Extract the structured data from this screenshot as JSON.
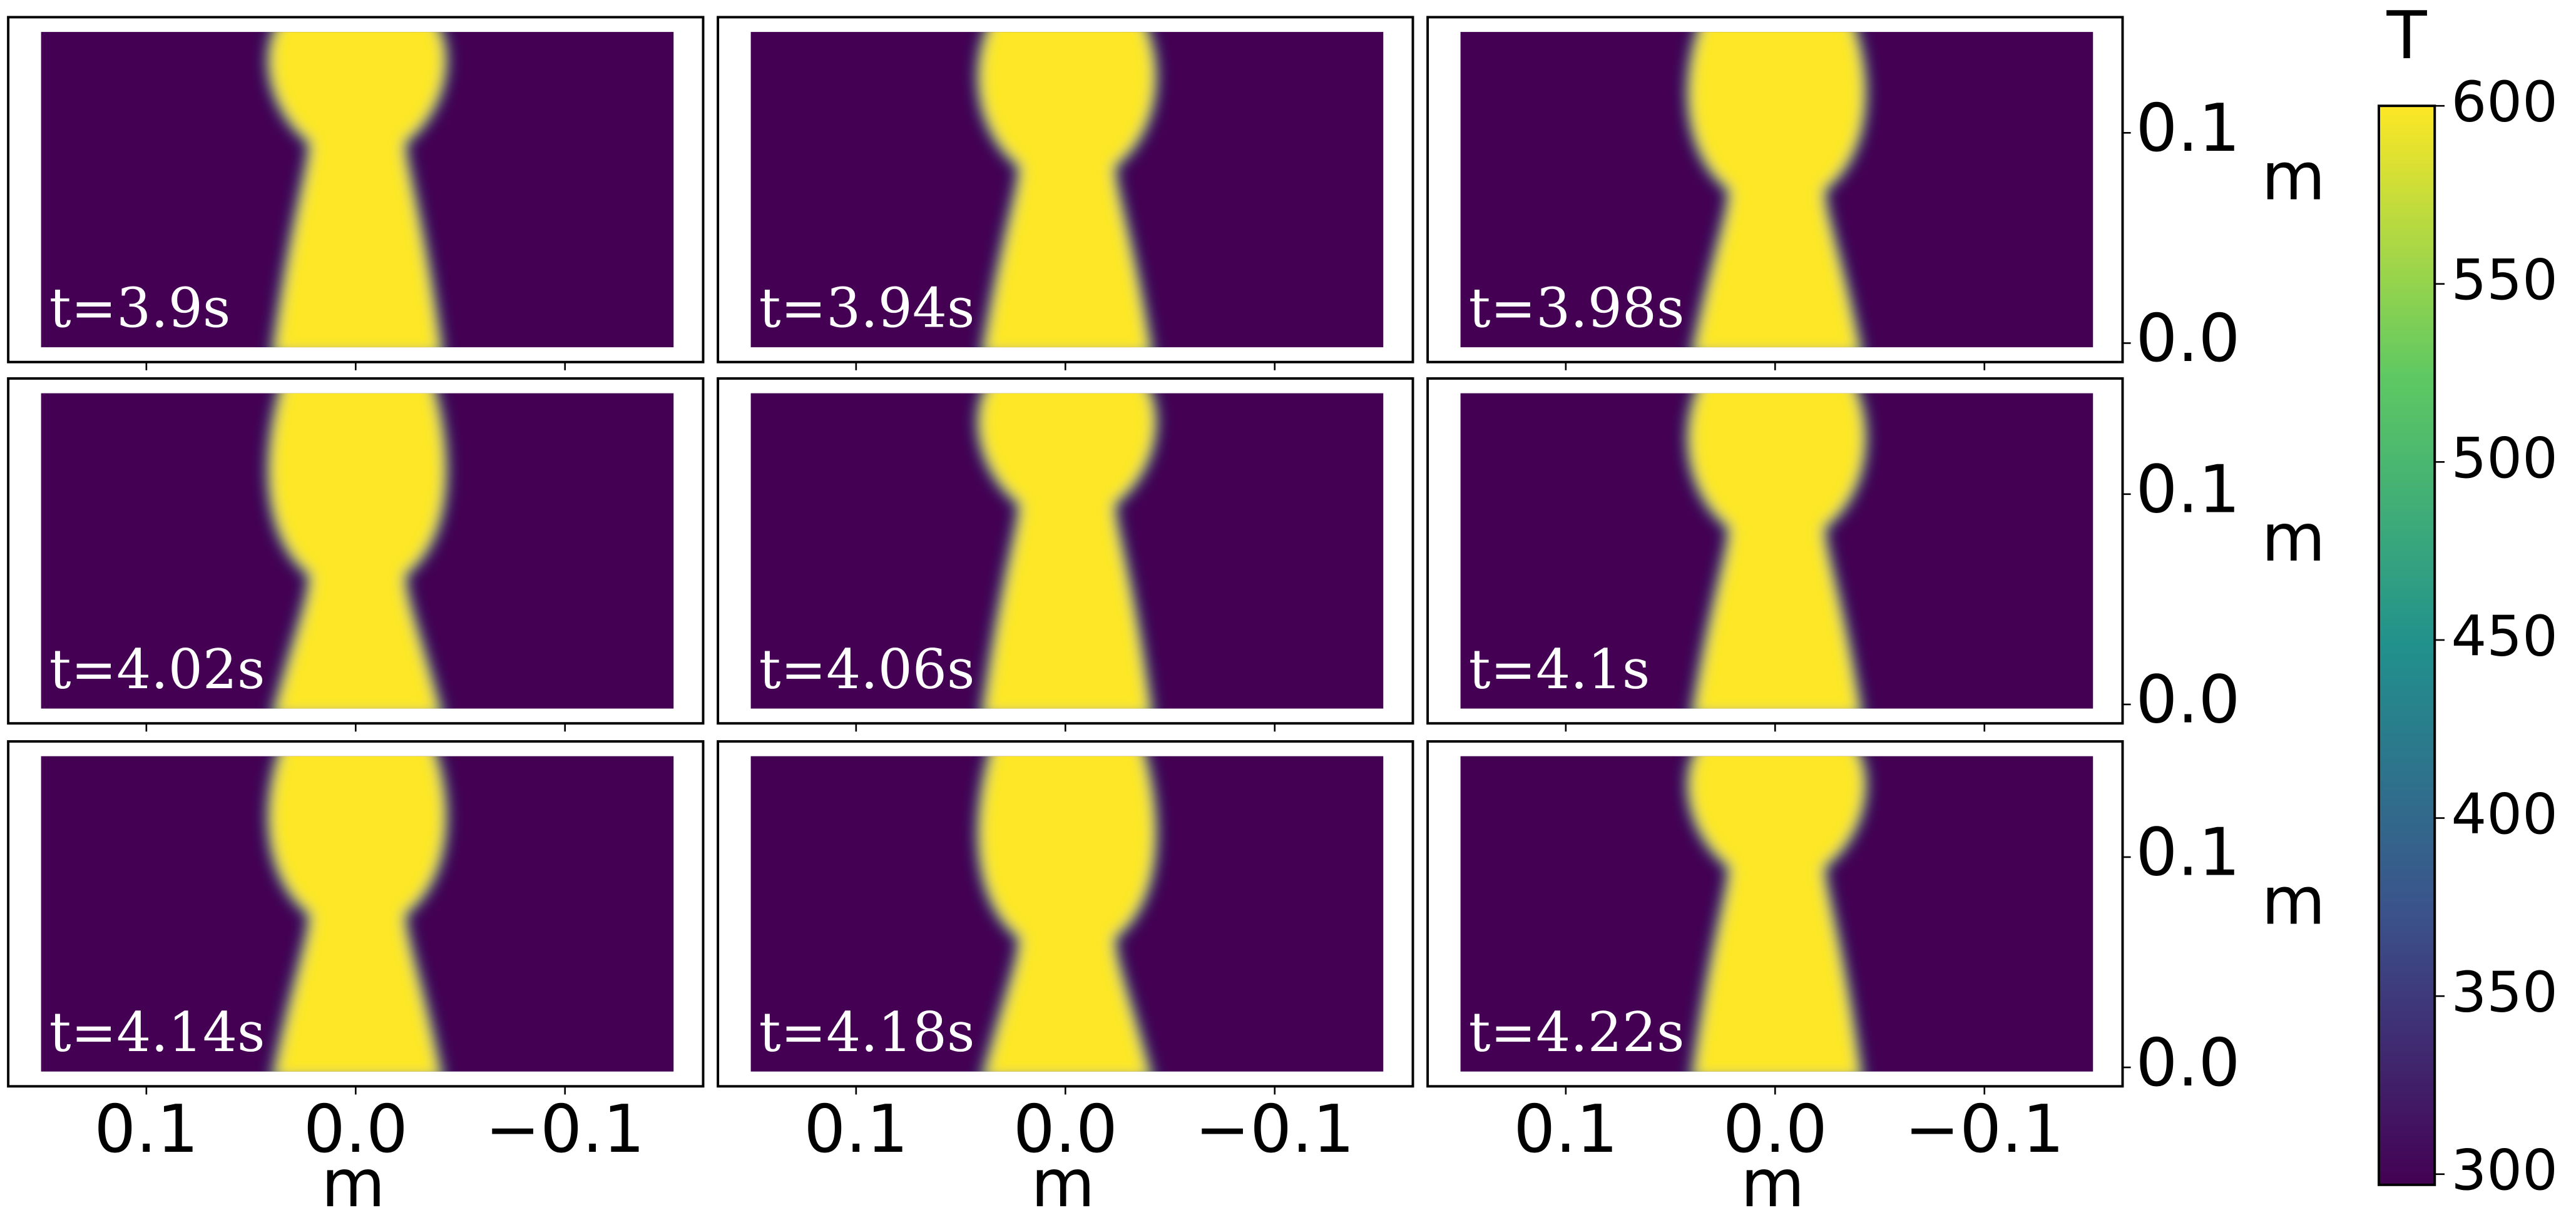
{
  "chart_data": {
    "type": "heatmap",
    "panels": [
      {
        "label": "t=3.9s"
      },
      {
        "label": "t=3.94s"
      },
      {
        "label": "t=3.98s"
      },
      {
        "label": "t=4.02s"
      },
      {
        "label": "t=4.06s"
      },
      {
        "label": "t=4.1s"
      },
      {
        "label": "t=4.14s"
      },
      {
        "label": "t=4.18s"
      },
      {
        "label": "t=4.22s"
      }
    ],
    "xlabel": "m",
    "ylabel": "m",
    "xlim": [
      0.166,
      -0.166
    ],
    "xticks": [
      {
        "value": 0.1,
        "label": "0.1"
      },
      {
        "value": 0.0,
        "label": "0.0"
      },
      {
        "value": -0.1,
        "label": "−0.1"
      }
    ],
    "ylim": [
      -0.009,
      0.155
    ],
    "yticks": [
      {
        "value": 0.0,
        "label": "0.0"
      },
      {
        "value": 0.1,
        "label": "0.1"
      }
    ],
    "colorbar": {
      "title": "T",
      "clim": [
        297,
        600
      ],
      "ticks": [
        300,
        350,
        400,
        450,
        500,
        550,
        600
      ],
      "colors": [
        "#440154",
        "#3b528b",
        "#21918c",
        "#5ec962",
        "#fde725"
      ]
    }
  }
}
